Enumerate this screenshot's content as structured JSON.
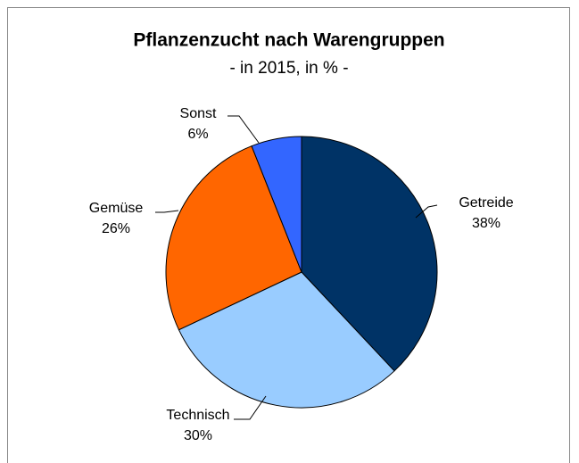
{
  "chart_data": {
    "type": "pie",
    "title": "Pflanzenzucht nach Warengruppen",
    "subtitle": "- in 2015, in % -",
    "categories": [
      "Getreide",
      "Technisch",
      "Gemüse",
      "Sonst"
    ],
    "values": [
      38,
      30,
      26,
      6
    ],
    "value_labels": [
      "38%",
      "30%",
      "26%",
      "6%"
    ],
    "colors": [
      "#003366",
      "#99ccff",
      "#ff6600",
      "#3366ff"
    ]
  }
}
